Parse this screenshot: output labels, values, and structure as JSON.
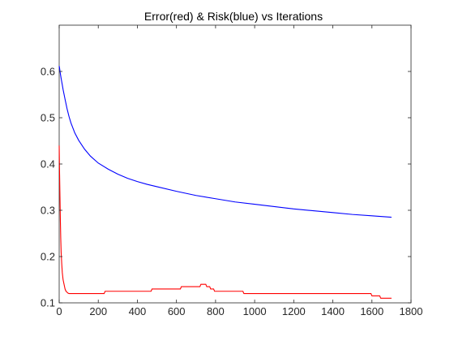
{
  "chart_data": {
    "type": "line",
    "title": "Error(red) & Risk(blue) vs Iterations",
    "xlabel": "",
    "ylabel": "",
    "xlim": [
      0,
      1800
    ],
    "ylim": [
      0.1,
      0.7
    ],
    "x_ticks": [
      0,
      200,
      400,
      600,
      800,
      1000,
      1200,
      1400,
      1600,
      1800
    ],
    "y_ticks": [
      0.1,
      0.2,
      0.3,
      0.4,
      0.5,
      0.6
    ],
    "grid": false,
    "legend": "none",
    "series": [
      {
        "color": "#0000ff",
        "x": [
          0,
          2,
          5,
          10,
          15,
          20,
          30,
          40,
          50,
          60,
          80,
          100,
          130,
          160,
          200,
          250,
          300,
          350,
          400,
          450,
          500,
          600,
          700,
          800,
          900,
          1000,
          1100,
          1200,
          1300,
          1400,
          1500,
          1600,
          1700
        ],
        "y": [
          0.612,
          0.607,
          0.598,
          0.585,
          0.573,
          0.561,
          0.54,
          0.52,
          0.503,
          0.489,
          0.467,
          0.451,
          0.432,
          0.417,
          0.402,
          0.389,
          0.378,
          0.369,
          0.362,
          0.356,
          0.351,
          0.341,
          0.332,
          0.325,
          0.318,
          0.313,
          0.308,
          0.303,
          0.299,
          0.295,
          0.291,
          0.288,
          0.285
        ]
      },
      {
        "color": "#ff0000",
        "x": [
          0,
          2,
          4,
          6,
          8,
          10,
          13,
          16,
          20,
          25,
          30,
          35,
          40,
          45,
          50,
          230,
          235,
          470,
          475,
          620,
          625,
          720,
          725,
          750,
          755,
          770,
          775,
          790,
          795,
          820,
          825,
          940,
          945,
          1595,
          1600,
          1640,
          1645,
          1700
        ],
        "y": [
          0.44,
          0.38,
          0.33,
          0.28,
          0.24,
          0.21,
          0.185,
          0.165,
          0.15,
          0.14,
          0.13,
          0.125,
          0.123,
          0.121,
          0.12,
          0.12,
          0.125,
          0.125,
          0.13,
          0.13,
          0.135,
          0.135,
          0.14,
          0.14,
          0.135,
          0.135,
          0.13,
          0.13,
          0.125,
          0.125,
          0.125,
          0.125,
          0.12,
          0.12,
          0.115,
          0.115,
          0.11,
          0.11
        ]
      }
    ]
  }
}
